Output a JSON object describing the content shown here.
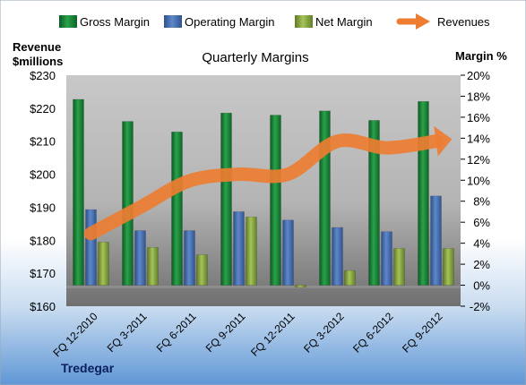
{
  "chart_data": {
    "type": "bar",
    "title": "Quarterly Margins",
    "footer": "Tredegar",
    "left_axis_title": [
      "Revenue",
      "$millions"
    ],
    "right_axis_title": "Margin %",
    "categories": [
      "FQ 12-2010",
      "FQ 3-2011",
      "FQ 6-2011",
      "FQ 9-2011",
      "FQ 12-2011",
      "FQ 3-2012",
      "FQ 6-2012",
      "FQ 9-2012"
    ],
    "series": [
      {
        "name": "Gross Margin",
        "axis": "right",
        "color": "#1e8a3c",
        "values": [
          17.7,
          15.6,
          14.6,
          16.4,
          16.2,
          16.6,
          15.7,
          17.5
        ]
      },
      {
        "name": "Operating Margin",
        "axis": "right",
        "color": "#4a73b5",
        "values": [
          7.2,
          5.2,
          5.2,
          7.0,
          6.2,
          5.5,
          5.1,
          8.5
        ]
      },
      {
        "name": "Net Margin",
        "axis": "right",
        "color": "#8fae4a",
        "values": [
          4.1,
          3.6,
          2.9,
          6.5,
          -0.2,
          1.4,
          3.5,
          3.5
        ]
      }
    ],
    "line_series": {
      "name": "Revenues",
      "axis": "left",
      "color": "#ed7d31",
      "values": [
        182,
        190,
        198,
        200,
        200,
        210,
        208,
        210
      ]
    },
    "left_axis": {
      "min": 160,
      "max": 230,
      "step": 10,
      "prefix": "$"
    },
    "right_axis": {
      "min": -2,
      "max": 20,
      "step": 2,
      "suffix": "%"
    },
    "legend_position": "top"
  }
}
